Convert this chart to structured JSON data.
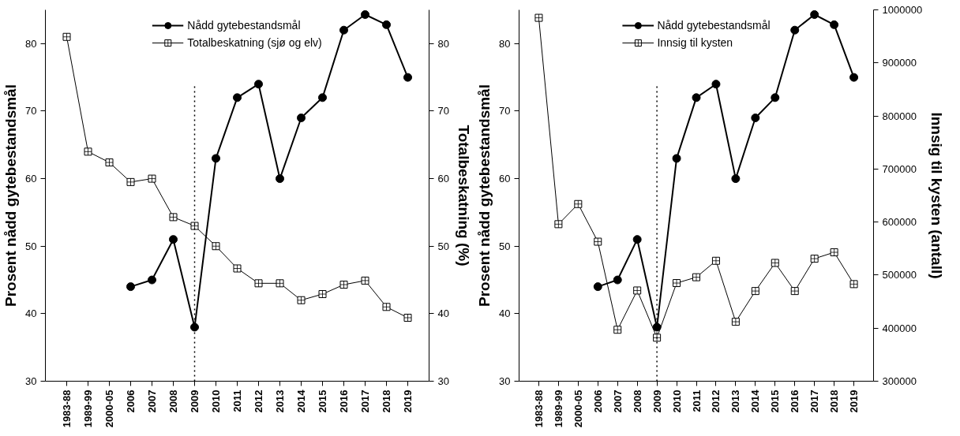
{
  "chart_data": [
    {
      "type": "line",
      "ylabel": "Prosent nådd gytebestandsmål",
      "y2label": "Totalbeskatning (%)",
      "categories": [
        "1983-88",
        "1989-99",
        "2000-05",
        "2006",
        "2007",
        "2008",
        "2009",
        "2010",
        "2011",
        "2012",
        "2013",
        "2014",
        "2015",
        "2016",
        "2017",
        "2018",
        "2019"
      ],
      "series": [
        {
          "name": "Nådd gytebestandsmål",
          "color": "#000000",
          "marker": "circle",
          "values": [
            null,
            null,
            null,
            44,
            45,
            51,
            38,
            63,
            72,
            74,
            60,
            69,
            72,
            82,
            84.3,
            82.8,
            75
          ]
        },
        {
          "name": "Totalbeskatning (sjø og elv)",
          "color": "#000000",
          "marker": "square",
          "axis": "y2",
          "values": [
            81,
            64,
            62.4,
            59.5,
            60,
            54.3,
            53,
            50,
            46.7,
            44.5,
            44.5,
            42,
            42.9,
            44.3,
            44.9,
            41,
            39.4
          ]
        }
      ],
      "ylim": [
        30,
        85
      ],
      "yticks": [
        30,
        40,
        50,
        60,
        70,
        80
      ],
      "y2lim": [
        30,
        85
      ],
      "y2ticks": [
        30,
        40,
        50,
        60,
        70,
        80
      ],
      "ref_lines": [
        {
          "axis": "x",
          "value": "2009",
          "label": null,
          "line_style": "dotted"
        }
      ],
      "grid": false,
      "legend": "top"
    },
    {
      "type": "line",
      "ylabel": "Prosent nådd gytebestandsmål",
      "y2label": "Innsig til kysten (antall)",
      "categories": [
        "1983-88",
        "1989-99",
        "2000-05",
        "2006",
        "2007",
        "2008",
        "2009",
        "2010",
        "2011",
        "2012",
        "2013",
        "2014",
        "2015",
        "2016",
        "2017",
        "2018",
        "2019"
      ],
      "series": [
        {
          "name": "Nådd gytebestandsmål",
          "color": "#000000",
          "marker": "circle",
          "values": [
            null,
            null,
            null,
            44,
            45,
            51,
            38,
            63,
            72,
            74,
            60,
            69,
            72,
            82,
            84.3,
            82.8,
            75
          ]
        },
        {
          "name": "Innsig til kysten",
          "color": "#000000",
          "marker": "square",
          "axis": "y2",
          "values": [
            985000,
            596000,
            634000,
            563000,
            397000,
            471000,
            382000,
            485000,
            496000,
            527000,
            412000,
            470000,
            523000,
            470000,
            531000,
            543000,
            483000
          ]
        }
      ],
      "ylim": [
        30,
        85
      ],
      "yticks": [
        30,
        40,
        50,
        60,
        70,
        80
      ],
      "y2lim": [
        300000,
        1000000
      ],
      "y2ticks": [
        300000,
        400000,
        500000,
        600000,
        700000,
        800000,
        900000,
        1000000
      ],
      "ref_lines": [
        {
          "axis": "x",
          "value": "2009",
          "label": null,
          "line_style": "dotted"
        }
      ],
      "grid": false,
      "legend": "top"
    }
  ]
}
